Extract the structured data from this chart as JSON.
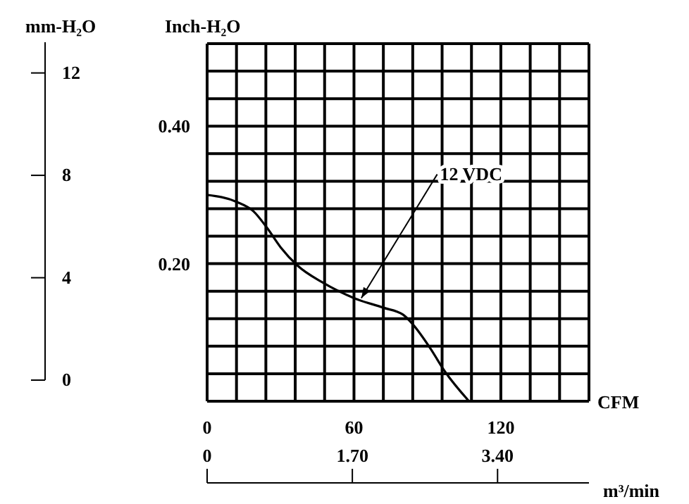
{
  "chart_data": {
    "type": "line",
    "xlabel": "CFM",
    "ylabel": "Inch-H₂O",
    "y2label": "mm-H₂O",
    "x2label": "m³/min",
    "x": [
      0,
      12,
      19,
      24.5,
      30,
      37,
      47,
      60,
      72,
      80,
      84,
      91,
      97,
      107
    ],
    "values": [
      0.3,
      0.29,
      0.276,
      0.252,
      0.224,
      0.197,
      0.173,
      0.15,
      0.136,
      0.126,
      0.112,
      0.078,
      0.044,
      0
    ],
    "color": "#000000",
    "marker": "none",
    "line_style": "solid",
    "grid": true,
    "xlim": [
      0,
      156
    ],
    "xticks": [
      0,
      {
        "value": 12,
        "label": null
      },
      {
        "value": 24,
        "label": null
      },
      {
        "value": 36,
        "label": null
      },
      {
        "value": 48,
        "label": null
      },
      60,
      {
        "value": 72,
        "label": null
      },
      {
        "value": 84,
        "label": null
      },
      {
        "value": 96,
        "label": null
      },
      {
        "value": 108,
        "label": null
      },
      120,
      {
        "value": 132,
        "label": null
      },
      {
        "value": 144,
        "label": null
      },
      {
        "value": 156,
        "label": null
      }
    ],
    "ylim": [
      0,
      0.52
    ],
    "yticks": [
      {
        "value": 0,
        "label": null
      },
      {
        "value": 0.04,
        "label": null
      },
      {
        "value": 0.08,
        "label": null
      },
      {
        "value": 0.12,
        "label": null
      },
      {
        "value": 0.16,
        "label": null
      },
      {
        "value": 0.2,
        "label": "0.20"
      },
      {
        "value": 0.24,
        "label": null
      },
      {
        "value": 0.28,
        "label": null
      },
      {
        "value": 0.32,
        "label": null
      },
      {
        "value": 0.36,
        "label": null
      },
      {
        "value": 0.4,
        "label": "0.40"
      },
      {
        "value": 0.44,
        "label": null
      },
      {
        "value": 0.48,
        "label": null
      },
      {
        "value": 0.52,
        "label": null
      }
    ],
    "y2lim": [
      0,
      13.2
    ],
    "y2ticks": [
      0,
      4,
      8,
      12
    ],
    "x2lim": [
      0,
      4.47
    ],
    "x2ticks": [
      0,
      {
        "value": 1.7,
        "label": "1.70"
      },
      {
        "value": 3.4,
        "label": "3.40"
      }
    ],
    "annotations": [
      {
        "text": "12 VDC",
        "x": 63,
        "y": 0.15
      }
    ]
  }
}
